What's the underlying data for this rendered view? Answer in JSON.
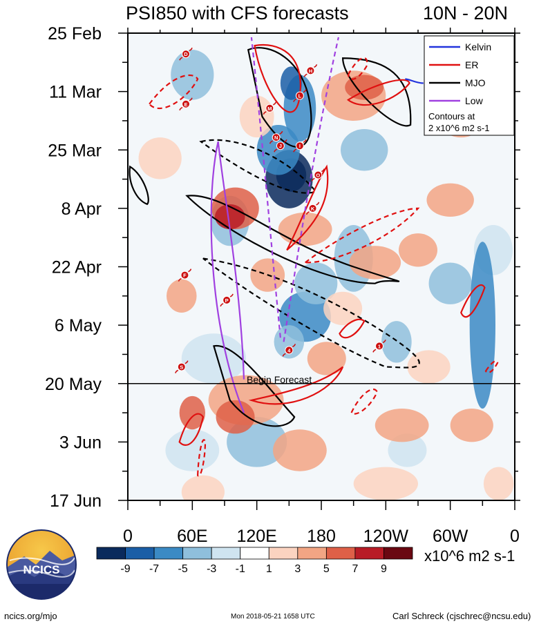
{
  "header": {
    "title": "PSI850 with CFS forecasts",
    "region": "10N - 20N"
  },
  "chart_data": {
    "type": "heatmap",
    "title": "PSI850 with CFS forecasts",
    "region": "10N - 20N",
    "x_ticks": [
      "0",
      "60E",
      "120E",
      "180",
      "120W",
      "60W",
      "0"
    ],
    "x_values": [
      0,
      60,
      120,
      180,
      240,
      300,
      360
    ],
    "xlim": [
      0,
      360
    ],
    "y_ticks": [
      "25 Feb",
      "11 Mar",
      "25 Mar",
      "8 Apr",
      "22 Apr",
      "6 May",
      "20 May",
      "3 Jun",
      "17 Jun"
    ],
    "y_day_offsets": [
      0,
      14,
      28,
      42,
      56,
      70,
      84,
      98,
      112
    ],
    "ylim_days": [
      0,
      112
    ],
    "forecast_start": {
      "label": "Begin Forecast",
      "day": 84
    },
    "legend": [
      {
        "name": "Kelvin",
        "color": "#2233dd"
      },
      {
        "name": "ER",
        "color": "#e01010"
      },
      {
        "name": "MJO",
        "color": "#000000"
      },
      {
        "name": "Low",
        "color": "#a040e0"
      }
    ],
    "contour_note": [
      "Contours at",
      "2 x10^6 m2 s-1"
    ],
    "colorbar": {
      "labels": [
        "-9",
        "-7",
        "-5",
        "-3",
        "-1",
        "1",
        "3",
        "5",
        "7",
        "9"
      ],
      "colors": [
        "#0a2a5c",
        "#1a5ea6",
        "#3b8ac4",
        "#8fbfdc",
        "#cfe4f0",
        "#ffffff",
        "#fbd3c0",
        "#f2a584",
        "#de6048",
        "#b81c26",
        "#6a0812"
      ],
      "units": "x10^6 m2 s-1"
    },
    "storms": [
      {
        "letter": "D",
        "lon": 54,
        "day": 5
      },
      {
        "letter": "E",
        "lon": 54,
        "day": 17
      },
      {
        "letter": "H",
        "lon": 170,
        "day": 9
      },
      {
        "letter": "L",
        "lon": 160,
        "day": 15
      },
      {
        "letter": "M",
        "lon": 132,
        "day": 18
      },
      {
        "letter": "N",
        "lon": 138,
        "day": 25
      },
      {
        "letter": "J",
        "lon": 142,
        "day": 27
      },
      {
        "letter": "I",
        "lon": 160,
        "day": 27
      },
      {
        "letter": "O",
        "lon": 177,
        "day": 34
      },
      {
        "letter": "K",
        "lon": 172,
        "day": 42
      },
      {
        "letter": "F",
        "lon": 53,
        "day": 58
      },
      {
        "letter": "P",
        "lon": 92,
        "day": 64
      },
      {
        "letter": "4",
        "lon": 150,
        "day": 76
      },
      {
        "letter": "1",
        "lon": 234,
        "day": 75
      },
      {
        "letter": "S",
        "lon": 50,
        "day": 80
      }
    ]
  },
  "branding": {
    "logo_text": "NCICS",
    "url": "ncics.org/mjo",
    "timestamp": "Mon 2018-05-21 1658 UTC",
    "author": "Carl Schreck (cjschrec@ncsu.edu)"
  }
}
